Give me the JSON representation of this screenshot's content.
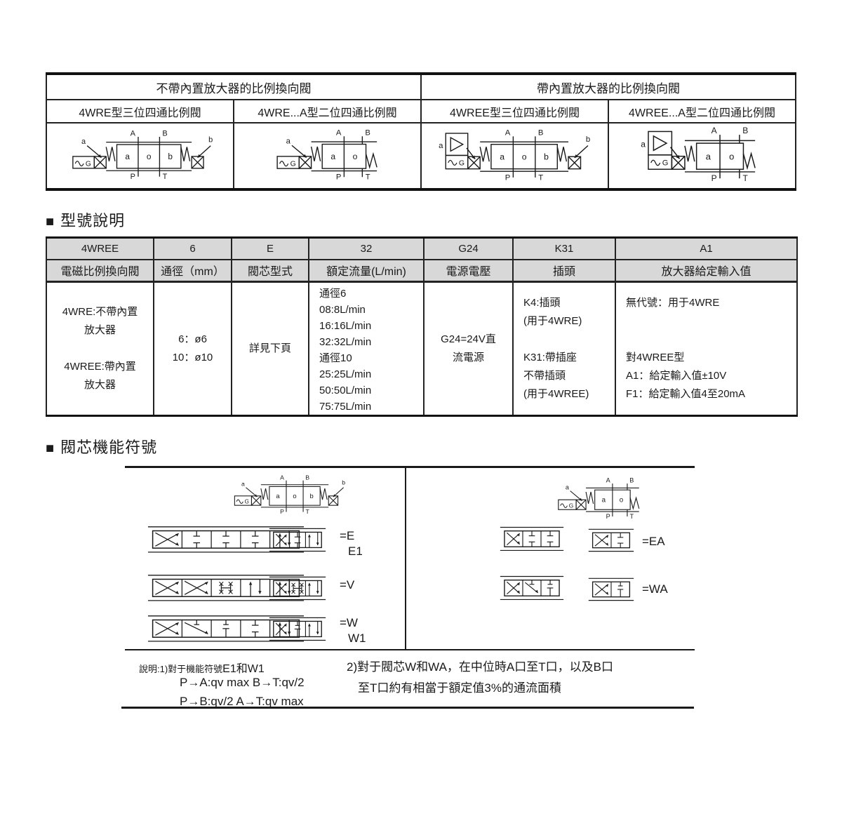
{
  "page": {
    "bg": "#ffffff",
    "ink": "#1a1a1a",
    "header_bg": "#d8d8d8"
  },
  "valve_labels": {
    "A": "A",
    "B": "B",
    "P": "P",
    "T": "T",
    "a": "a",
    "b": "b",
    "o": "o",
    "G": "G"
  },
  "top_table": {
    "group_headers": [
      "不帶內置放大器的比例換向閥",
      "帶內置放大器的比例換向閥"
    ],
    "column_headers": [
      "4WRE型三位四通比例閥",
      "4WRE...A型二位四通比例閥",
      "4WREE型三位四通比例閥",
      "4WREE...A型二位四通比例閥"
    ]
  },
  "model_section": {
    "bullet": "■",
    "title": "型號說明",
    "codes": [
      "4WREE",
      "6",
      "E",
      "32",
      "G24",
      "K31",
      "A1"
    ],
    "names": [
      "電磁比例換向閥",
      "通徑（mm）",
      "閥芯型式",
      "額定流量(L/min)",
      "電源電壓",
      "插頭",
      "放大器給定輸入值"
    ],
    "details": [
      "4WRE:不帶內置\n放大器\n\n4WREE:帶內置\n放大器",
      "6：ø6\n10：ø10",
      "詳見下頁",
      "通徑6\n08:8L/min\n16:16L/min\n32:32L/min\n通徑10\n25:25L/min\n50:50L/min\n75:75L/min",
      "G24=24V直\n流電源",
      "K4:插頭\n(用于4WRE)\n\nK31:帶插座\n不帶插頭\n(用于4WREE)",
      "無代號：用于4WRE\n\n\n對4WREE型\nA1：給定輸入值±10V\nF1：給定輸入值4至20mA"
    ]
  },
  "spool_section": {
    "bullet": "■",
    "title": "閥芯機能符號",
    "left_labels": [
      {
        "main": "=E",
        "sub": "E1"
      },
      {
        "main": "=V",
        "sub": ""
      },
      {
        "main": "=W",
        "sub": "W1"
      }
    ],
    "right_labels": [
      {
        "main": "=EA"
      },
      {
        "main": "=WA"
      }
    ],
    "notes": {
      "n1_prefix": "說明:1)對于機能符號",
      "n1_codes": "E1和W1",
      "n1_line2": "P→A:qv max   B→T:qv/2",
      "n1_line3": "P→B:qv/2   A→T:qv max",
      "n2_line1": "2)對于閥芯W和WA，在中位時A口至T口，以及B口",
      "n2_line2": "至T口約有相當于額定值3%的通流面積"
    }
  }
}
